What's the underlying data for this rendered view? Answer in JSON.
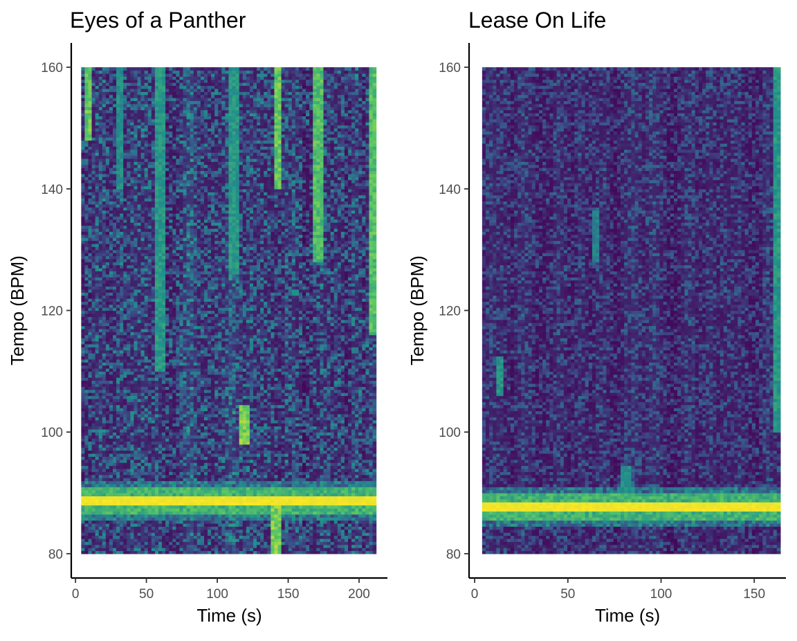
{
  "chart_data": [
    {
      "type": "heatmap",
      "title": "Eyes of a Panther",
      "xlabel": "Time (s)",
      "ylabel": "Tempo (BPM)",
      "xlim": [
        -3,
        220
      ],
      "ylim": [
        76,
        164
      ],
      "x_ticks": [
        0,
        50,
        100,
        150,
        200
      ],
      "y_ticks": [
        80,
        100,
        120,
        140,
        160
      ],
      "x_range": [
        4,
        212
      ],
      "y_range": [
        80,
        160
      ],
      "colormap": [
        "#440154",
        "#3b528b",
        "#21918c",
        "#5ec962",
        "#fde725"
      ],
      "dominant_tempo": 88.5,
      "intensity_streaks": [
        {
          "time": 8,
          "tempo_from": 148,
          "tempo_to": 160,
          "value": 0.85
        },
        {
          "time": 30,
          "tempo_from": 140,
          "tempo_to": 160,
          "value": 0.55
        },
        {
          "time": 58,
          "tempo_from": 110,
          "tempo_to": 160,
          "value": 0.6
        },
        {
          "time": 110,
          "tempo_from": 126,
          "tempo_to": 160,
          "value": 0.6
        },
        {
          "time": 118,
          "tempo_from": 98,
          "tempo_to": 104,
          "value": 0.9
        },
        {
          "time": 140,
          "tempo_from": 80,
          "tempo_to": 88,
          "value": 0.9
        },
        {
          "time": 142,
          "tempo_from": 140,
          "tempo_to": 160,
          "value": 0.85
        },
        {
          "time": 170,
          "tempo_from": 128,
          "tempo_to": 160,
          "value": 0.8
        },
        {
          "time": 208,
          "tempo_from": 116,
          "tempo_to": 160,
          "value": 0.8
        }
      ]
    },
    {
      "type": "heatmap",
      "title": "Lease On Life",
      "xlabel": "Time (s)",
      "ylabel": "Tempo (BPM)",
      "xlim": [
        -3,
        167
      ],
      "ylim": [
        76,
        164
      ],
      "x_ticks": [
        0,
        50,
        100,
        150
      ],
      "y_ticks": [
        80,
        100,
        120,
        140,
        160
      ],
      "x_range": [
        4,
        164
      ],
      "y_range": [
        80,
        160
      ],
      "colormap": [
        "#440154",
        "#3b528b",
        "#21918c",
        "#5ec962",
        "#fde725"
      ],
      "dominant_tempo": 87.5,
      "intensity_streaks": [
        {
          "time": 13,
          "tempo_from": 106,
          "tempo_to": 112,
          "value": 0.6
        },
        {
          "time": 64,
          "tempo_from": 128,
          "tempo_to": 136,
          "value": 0.5
        },
        {
          "time": 80,
          "tempo_from": 88,
          "tempo_to": 94,
          "value": 0.55
        },
        {
          "time": 162,
          "tempo_from": 100,
          "tempo_to": 160,
          "value": 0.6
        }
      ]
    }
  ]
}
